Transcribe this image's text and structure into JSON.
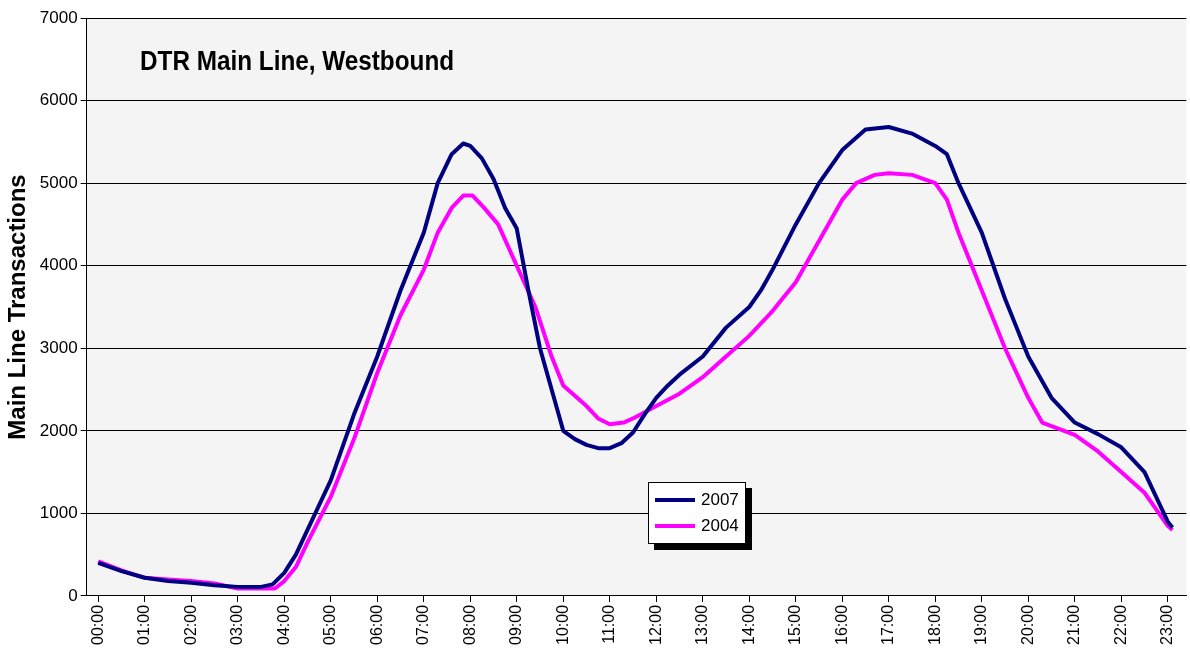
{
  "chart_data": {
    "type": "line",
    "title": "DTR Main Line, Westbound",
    "ylabel": "Main Line Transactions",
    "xlim": [
      -0.25,
      23.4
    ],
    "ylim": [
      0,
      7000
    ],
    "yticks": [
      0,
      1000,
      2000,
      3000,
      4000,
      5000,
      6000,
      7000
    ],
    "xticks": [
      {
        "value": 0,
        "label": "00:00"
      },
      {
        "value": 1,
        "label": "01:00"
      },
      {
        "value": 2,
        "label": "02:00"
      },
      {
        "value": 3,
        "label": "03:00"
      },
      {
        "value": 4,
        "label": "04:00"
      },
      {
        "value": 5,
        "label": "05:00"
      },
      {
        "value": 6,
        "label": "06:00"
      },
      {
        "value": 7,
        "label": "07:00"
      },
      {
        "value": 8,
        "label": "08:00"
      },
      {
        "value": 9,
        "label": "09:00"
      },
      {
        "value": 10,
        "label": "10:00"
      },
      {
        "value": 11,
        "label": "11:00"
      },
      {
        "value": 12,
        "label": "12:00"
      },
      {
        "value": 13,
        "label": "13:00"
      },
      {
        "value": 14,
        "label": "14:00"
      },
      {
        "value": 15,
        "label": "15:00"
      },
      {
        "value": 16,
        "label": "16:00"
      },
      {
        "value": 17,
        "label": "17:00"
      },
      {
        "value": 18,
        "label": "18:00"
      },
      {
        "value": 19,
        "label": "19:00"
      },
      {
        "value": 20,
        "label": "20:00"
      },
      {
        "value": 21,
        "label": "21:00"
      },
      {
        "value": 22,
        "label": "22:00"
      },
      {
        "value": 23,
        "label": "23:00"
      }
    ],
    "grid": "y",
    "legend": "bottom",
    "marker": "none",
    "line_style": "solid",
    "series": [
      {
        "name": "2007",
        "color": "#000080",
        "x": [
          0,
          0.5,
          1,
          1.5,
          2,
          2.5,
          3,
          3.5,
          3.75,
          4,
          4.25,
          4.5,
          5,
          5.5,
          6,
          6.5,
          7,
          7.3,
          7.6,
          7.85,
          8,
          8.25,
          8.5,
          8.75,
          9,
          9.25,
          9.5,
          9.75,
          9.9,
          10,
          10.25,
          10.5,
          10.75,
          11,
          11.25,
          11.5,
          11.75,
          12,
          12.25,
          12.5,
          13,
          13.5,
          14,
          14.25,
          14.5,
          15,
          15.5,
          16,
          16.5,
          17,
          17.5,
          18,
          18.25,
          18.5,
          19,
          19.5,
          20,
          20.5,
          21,
          21.5,
          22,
          22.5,
          23,
          23.1
        ],
        "values": [
          400,
          300,
          220,
          180,
          160,
          130,
          110,
          110,
          140,
          280,
          500,
          800,
          1400,
          2200,
          2900,
          3700,
          4400,
          5000,
          5350,
          5480,
          5450,
          5300,
          5050,
          4700,
          4450,
          3700,
          3000,
          2500,
          2200,
          2000,
          1900,
          1830,
          1790,
          1790,
          1850,
          1980,
          2200,
          2400,
          2550,
          2680,
          2900,
          3250,
          3500,
          3700,
          3950,
          4500,
          5000,
          5400,
          5650,
          5680,
          5600,
          5450,
          5350,
          5000,
          4400,
          3600,
          2900,
          2400,
          2100,
          1960,
          1800,
          1500,
          900,
          830
        ]
      },
      {
        "name": "2004",
        "color": "#ff00ff",
        "x": [
          0,
          0.5,
          1,
          1.5,
          2,
          2.5,
          3,
          3.5,
          3.8,
          4,
          4.25,
          4.5,
          5,
          5.5,
          6,
          6.5,
          7,
          7.3,
          7.6,
          7.85,
          8.05,
          8.3,
          8.6,
          9,
          9.4,
          9.75,
          10,
          10.5,
          10.75,
          11,
          11.3,
          11.5,
          12,
          12.5,
          13,
          13.5,
          14,
          14.5,
          15,
          15.5,
          16,
          16.3,
          16.7,
          17,
          17.5,
          18,
          18.25,
          18.5,
          19,
          19.5,
          20,
          20.3,
          21,
          21.5,
          22,
          22.5,
          23,
          23.1
        ],
        "values": [
          420,
          310,
          220,
          200,
          180,
          150,
          90,
          90,
          90,
          180,
          350,
          650,
          1200,
          1900,
          2700,
          3400,
          3950,
          4400,
          4700,
          4850,
          4850,
          4700,
          4500,
          4000,
          3500,
          2900,
          2550,
          2300,
          2150,
          2080,
          2100,
          2150,
          2300,
          2450,
          2650,
          2900,
          3150,
          3450,
          3800,
          4300,
          4800,
          5000,
          5100,
          5120,
          5100,
          5000,
          4800,
          4400,
          3700,
          3000,
          2400,
          2100,
          1950,
          1750,
          1500,
          1250,
          850,
          800
        ]
      }
    ]
  }
}
